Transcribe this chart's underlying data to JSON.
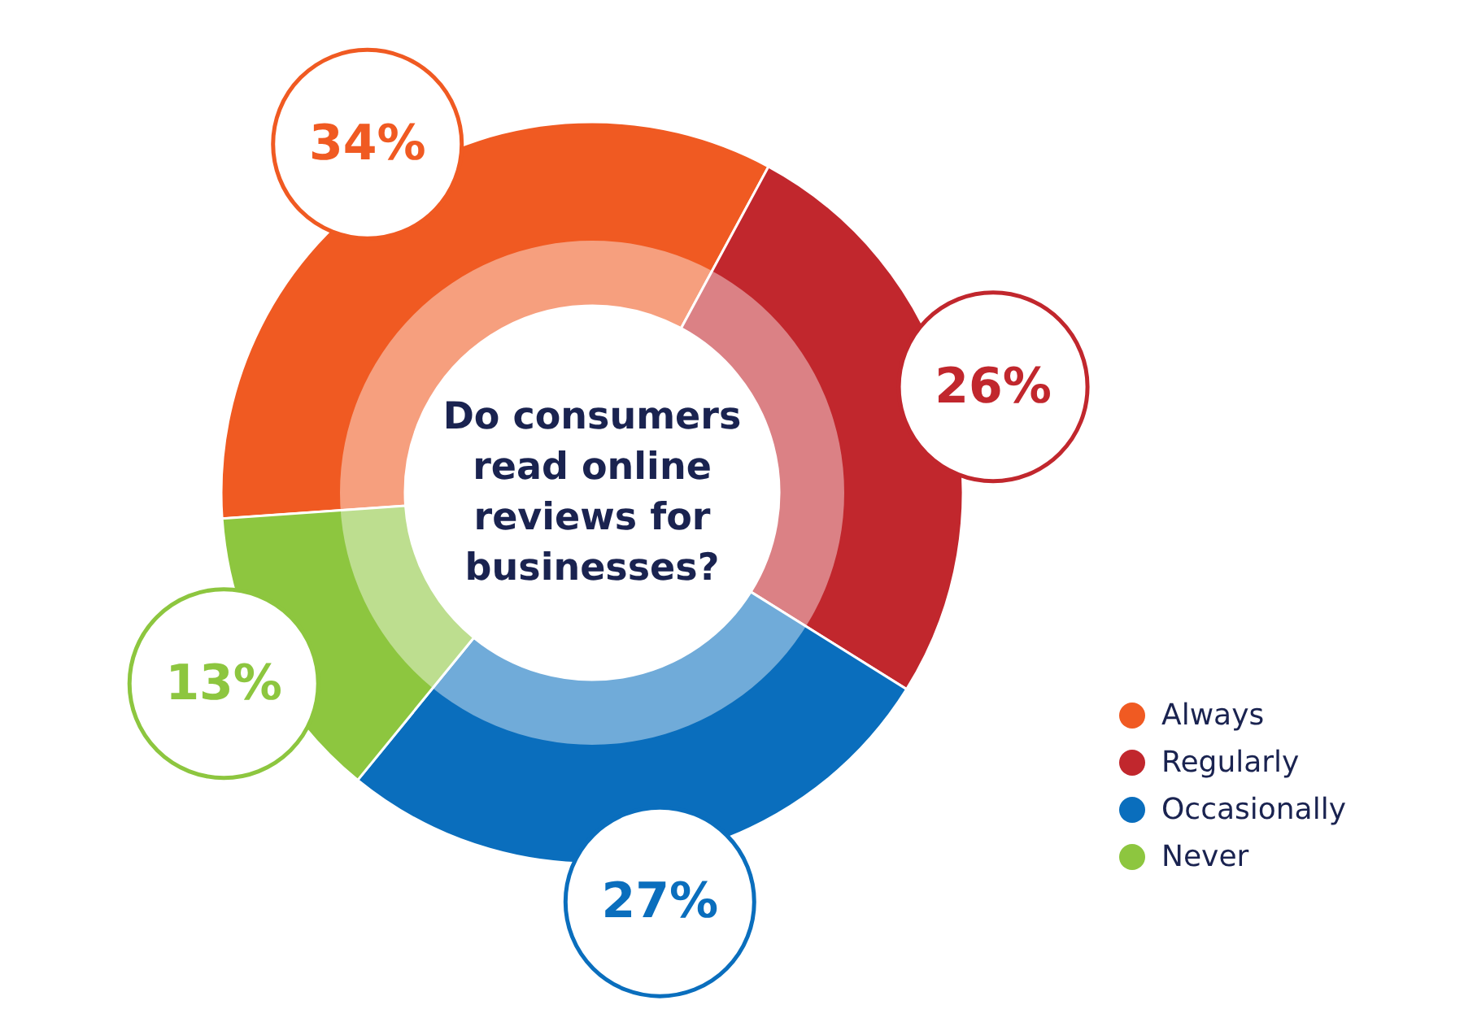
{
  "chart_data": {
    "type": "donut",
    "title": "Do consumers read online reviews for businesses?",
    "categories": [
      "Always",
      "Regularly",
      "Occasionally",
      "Never"
    ],
    "values": [
      34,
      26,
      27,
      13
    ],
    "value_labels": [
      "34%",
      "26%",
      "27%",
      "13%"
    ],
    "colors": [
      "#f05a22",
      "#c1272d",
      "#0a6ebd",
      "#8dc63f"
    ],
    "legend": "right"
  }
}
